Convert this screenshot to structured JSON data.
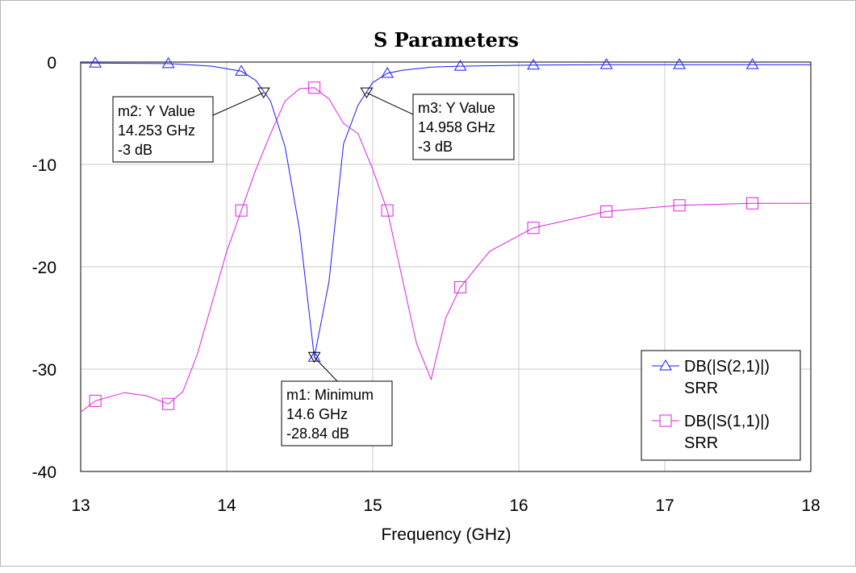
{
  "chart_data": {
    "type": "line",
    "title": "S Parameters",
    "xlabel": "Frequency (GHz)",
    "ylabel": "",
    "xlim": [
      13,
      18
    ],
    "ylim": [
      -40,
      0
    ],
    "xticks": [
      "13",
      "14",
      "15",
      "16",
      "17",
      "18"
    ],
    "yticks": [
      "0",
      "-10",
      "-20",
      "-30",
      "-40"
    ],
    "grid": true,
    "legend_position": "bottom-right",
    "series": [
      {
        "name_line1": "DB(|S(2,1)|)",
        "name_line2": "SRR",
        "color": "#1a1aff",
        "marker": "triangle",
        "x": [
          13.0,
          13.1,
          13.6,
          13.9,
          14.1,
          14.2,
          14.3,
          14.4,
          14.5,
          14.6,
          14.7,
          14.8,
          14.9,
          15.0,
          15.1,
          15.2,
          15.4,
          15.6,
          16.1,
          16.6,
          17.1,
          17.6,
          18.0
        ],
        "values": [
          -0.1,
          -0.1,
          -0.15,
          -0.4,
          -0.9,
          -1.8,
          -3.8,
          -8.3,
          -16.5,
          -28.84,
          -21.5,
          -8.0,
          -4.2,
          -2.0,
          -1.1,
          -0.8,
          -0.5,
          -0.4,
          -0.3,
          -0.25,
          -0.25,
          -0.25,
          -0.25
        ],
        "marker_x": [
          13.1,
          13.6,
          14.1,
          14.6,
          15.1,
          15.6,
          16.1,
          16.6,
          17.1,
          17.6
        ]
      },
      {
        "name_line1": "DB(|S(1,1)|)",
        "name_line2": "SRR",
        "color": "#e020e0",
        "marker": "square",
        "x": [
          13.0,
          13.1,
          13.3,
          13.45,
          13.6,
          13.7,
          13.8,
          13.9,
          14.0,
          14.1,
          14.2,
          14.3,
          14.4,
          14.5,
          14.6,
          14.7,
          14.8,
          14.9,
          15.0,
          15.1,
          15.2,
          15.3,
          15.4,
          15.5,
          15.6,
          15.8,
          16.1,
          16.6,
          17.1,
          17.6,
          18.0
        ],
        "values": [
          -34.2,
          -33.1,
          -32.3,
          -32.6,
          -33.4,
          -32.2,
          -28.5,
          -23.5,
          -18.5,
          -14.5,
          -10.5,
          -7.0,
          -3.8,
          -2.6,
          -2.5,
          -3.6,
          -6.0,
          -7.0,
          -10.5,
          -14.5,
          -21.0,
          -27.5,
          -31.0,
          -25.0,
          -22.0,
          -18.5,
          -16.2,
          -14.6,
          -14.0,
          -13.8,
          -13.8
        ],
        "marker_x": [
          13.1,
          13.6,
          14.1,
          14.6,
          15.1,
          15.6,
          16.1,
          16.6,
          17.1,
          17.6
        ]
      }
    ],
    "markers": [
      {
        "id": "m1",
        "x": 14.6,
        "y": -28.84,
        "line1": "m1: Minimum",
        "line2": "14.6 GHz",
        "line3": "-28.84 dB"
      },
      {
        "id": "m2",
        "x": 14.253,
        "y": -3,
        "line1": "m2: Y Value",
        "line2": "14.253 GHz",
        "line3": "-3 dB"
      },
      {
        "id": "m3",
        "x": 14.958,
        "y": -3,
        "line1": "m3: Y Value",
        "line2": "14.958 GHz",
        "line3": "-3 dB"
      }
    ]
  }
}
